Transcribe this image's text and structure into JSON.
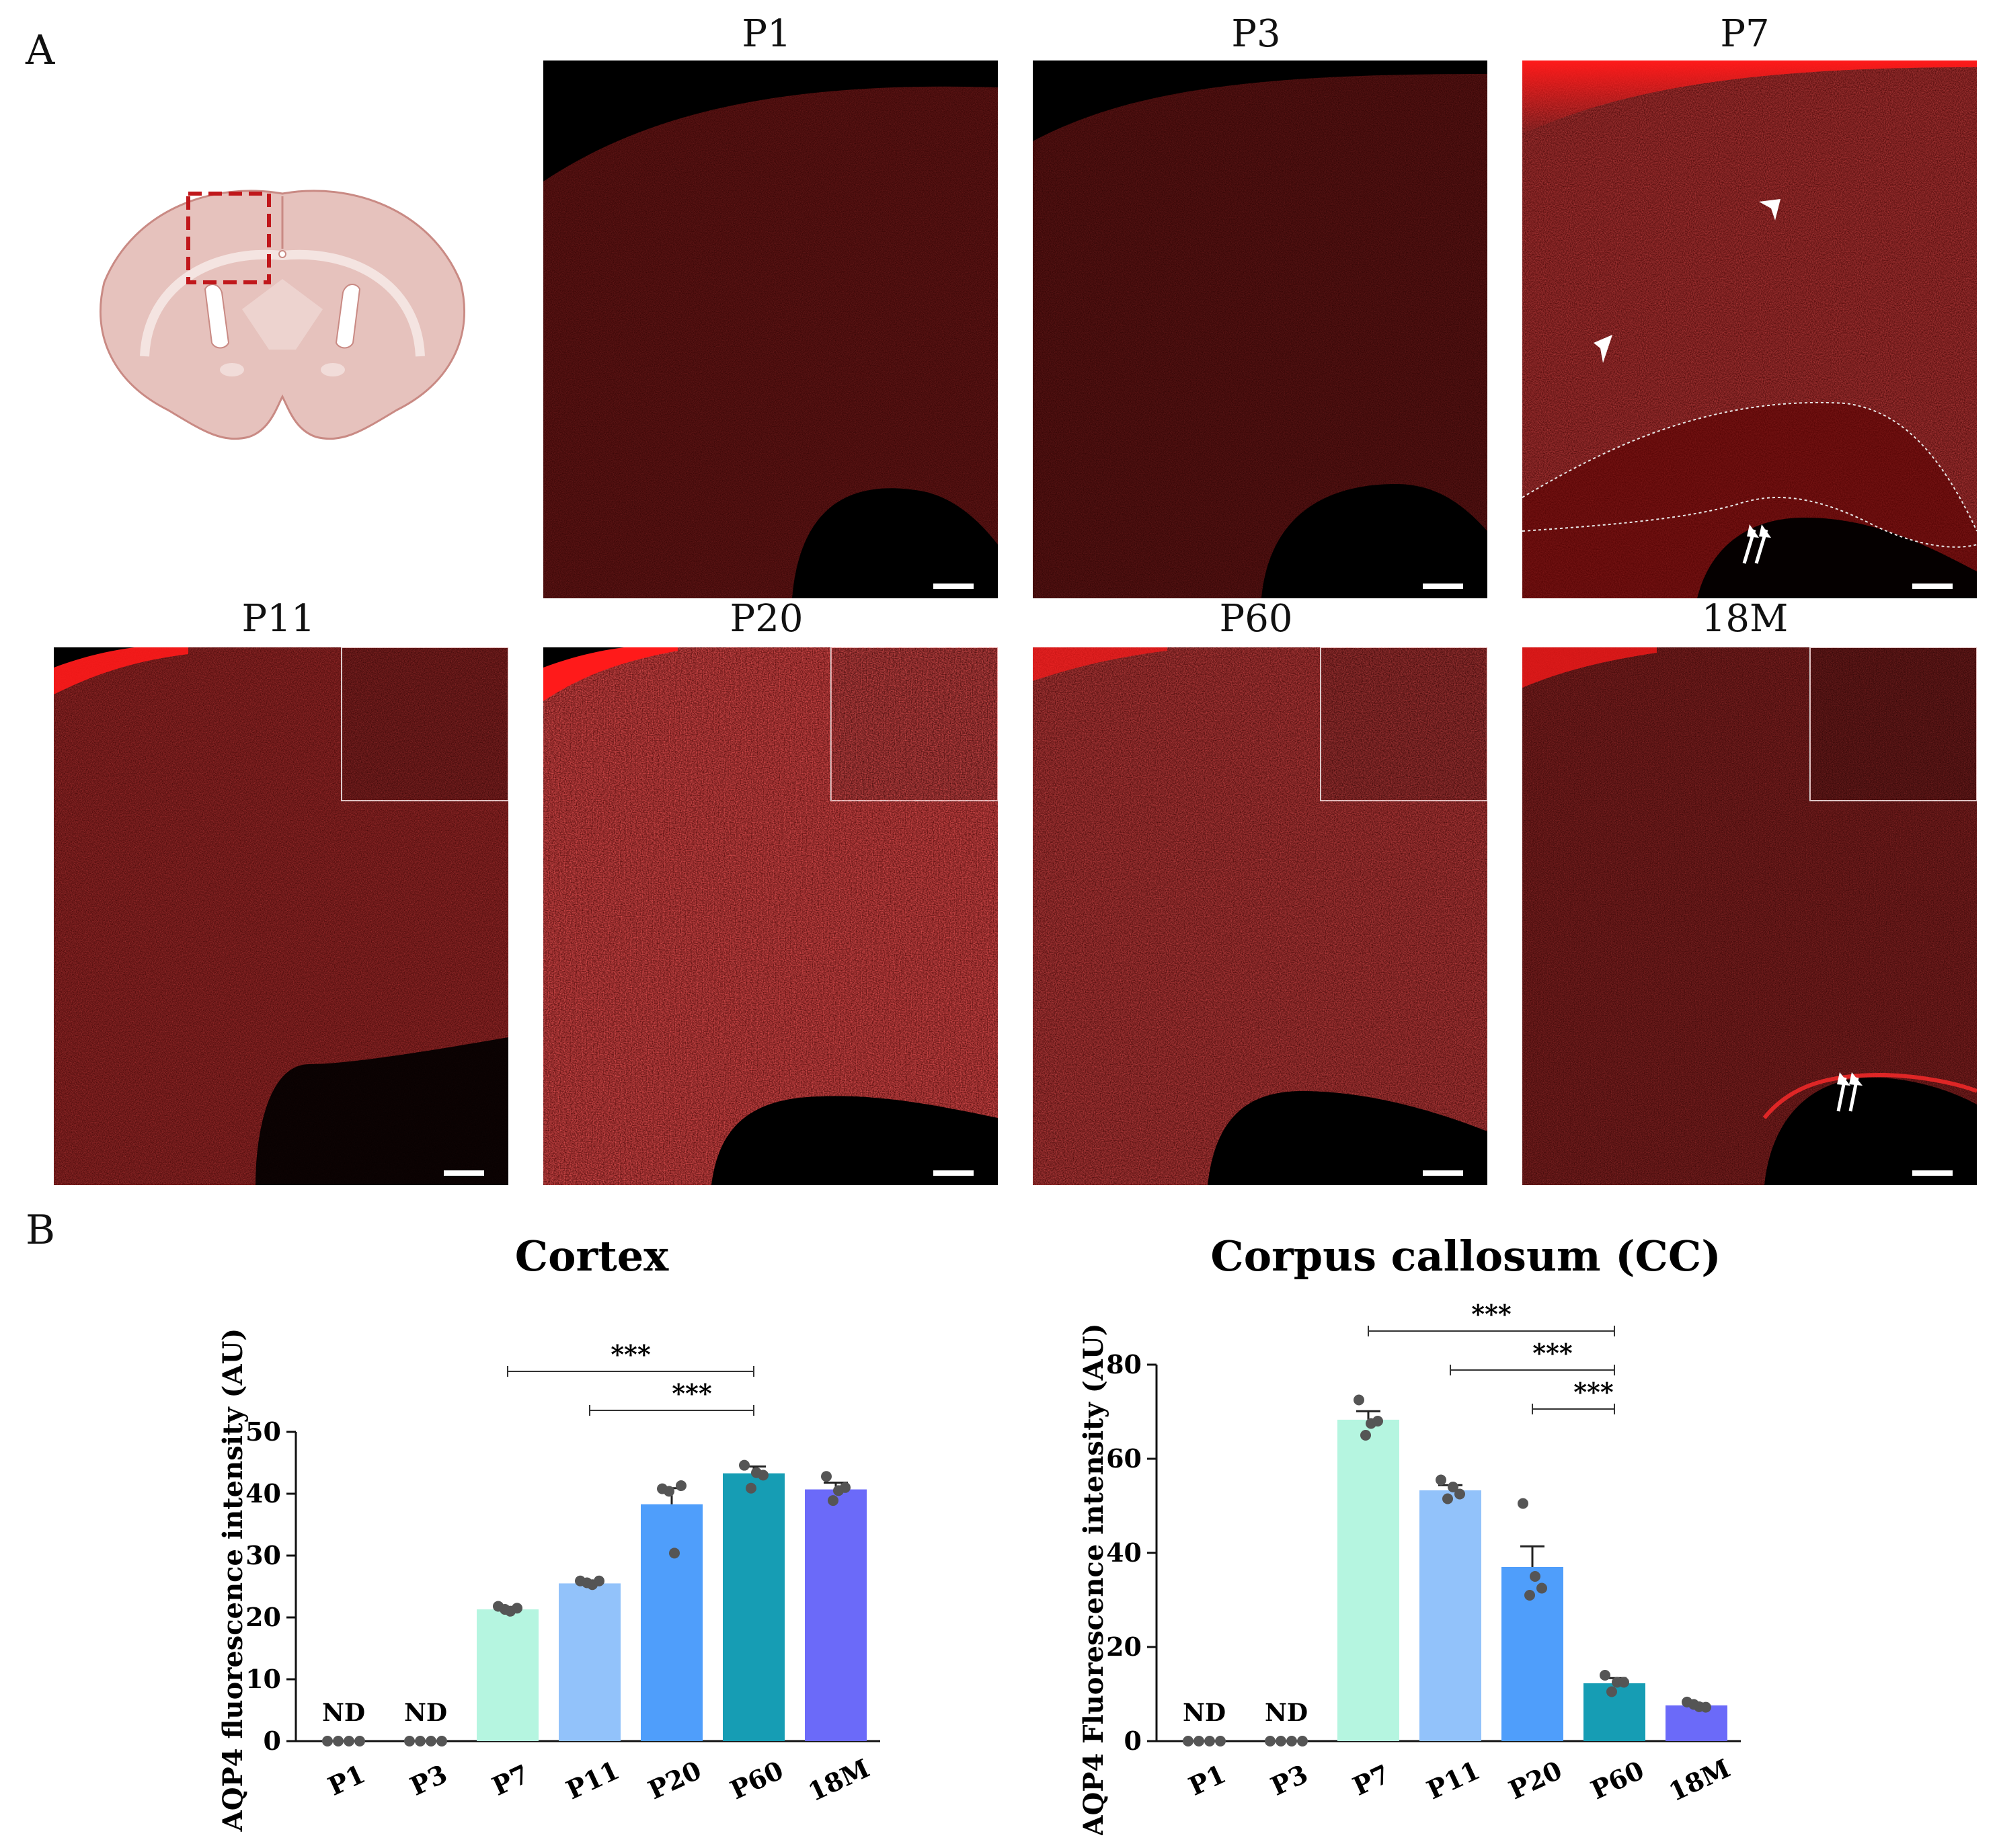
{
  "panel_labels": {
    "a": "A",
    "b": "B"
  },
  "micrographs": [
    {
      "key": "p1",
      "title": "P1"
    },
    {
      "key": "p3",
      "title": "P3"
    },
    {
      "key": "p7",
      "title": "P7"
    },
    {
      "key": "p11",
      "title": "P11"
    },
    {
      "key": "p20",
      "title": "P20"
    },
    {
      "key": "p60",
      "title": "P60"
    },
    {
      "key": "m18",
      "title": "18M"
    }
  ],
  "colors": {
    "fluorescence": "#ff1a1a",
    "roi_box": "#c0171b",
    "brain_fill": "#e6c2bd",
    "brain_stroke": "#c98a84"
  },
  "chart_data": [
    {
      "type": "bar",
      "title": "Cortex",
      "ylabel": "AQP4 fluorescence intensity (AU)",
      "xlabel": "",
      "categories": [
        "P1",
        "P3",
        "P7",
        "P11",
        "P20",
        "P60",
        "18M"
      ],
      "values": [
        0,
        0,
        21.3,
        25.5,
        38.3,
        43.3,
        40.7
      ],
      "errors": [
        0,
        0,
        0.4,
        0.4,
        2.6,
        1.1,
        1.1
      ],
      "points": [
        [
          0,
          0,
          0,
          0
        ],
        [
          0,
          0,
          0,
          0
        ],
        [
          21.8,
          21.0,
          21.3,
          21.5
        ],
        [
          25.9,
          25.3,
          25.6,
          25.9
        ],
        [
          40.8,
          30.4,
          40.4,
          41.3
        ],
        [
          44.6,
          43.4,
          40.9,
          43.0
        ],
        [
          42.8,
          40.5,
          38.9,
          41.0
        ]
      ],
      "nd_labels": [
        "ND",
        "ND",
        "",
        "",
        "",
        "",
        ""
      ],
      "bar_colors": [
        "#b5f5e0",
        "#b5f5e0",
        "#b5f5e0",
        "#92c2fa",
        "#4f9efb",
        "#169db4",
        "#6b6af9"
      ],
      "ylim": [
        0,
        50
      ],
      "yticks": [
        0,
        10,
        20,
        30,
        40,
        50
      ],
      "significance": [
        {
          "from": 2,
          "to": 5,
          "label": "***"
        },
        {
          "from": 3,
          "to": 5,
          "label": "***"
        }
      ]
    },
    {
      "type": "bar",
      "title": "Corpus callosum (CC)",
      "ylabel": "AQP4 Fluorescence intensity (AU)",
      "xlabel": "",
      "categories": [
        "P1",
        "P3",
        "P7",
        "P11",
        "P20",
        "P60",
        "18M"
      ],
      "values": [
        0,
        0,
        68.3,
        53.3,
        37.0,
        12.3,
        7.6
      ],
      "errors": [
        0,
        0,
        1.8,
        1.1,
        4.4,
        1.1,
        0.4
      ],
      "points": [
        [
          0,
          0,
          0,
          0
        ],
        [
          0,
          0,
          0,
          0
        ],
        [
          72.5,
          67.5,
          65.0,
          68.0
        ],
        [
          55.5,
          54.0,
          51.5,
          52.5
        ],
        [
          50.5,
          35.0,
          31.0,
          32.5
        ],
        [
          14.0,
          12.5,
          10.5,
          12.5
        ],
        [
          8.3,
          7.3,
          7.8,
          7.2
        ]
      ],
      "nd_labels": [
        "ND",
        "ND",
        "",
        "",
        "",
        "",
        ""
      ],
      "bar_colors": [
        "#b5f5e0",
        "#b5f5e0",
        "#b5f5e0",
        "#92c2fa",
        "#4f9efb",
        "#169db4",
        "#6b6af9"
      ],
      "ylim": [
        0,
        80
      ],
      "yticks": [
        0,
        20,
        40,
        60,
        80
      ],
      "significance": [
        {
          "from": 2,
          "to": 5,
          "label": "***"
        },
        {
          "from": 3,
          "to": 5,
          "label": "***"
        },
        {
          "from": 4,
          "to": 5,
          "label": "***"
        }
      ]
    }
  ]
}
